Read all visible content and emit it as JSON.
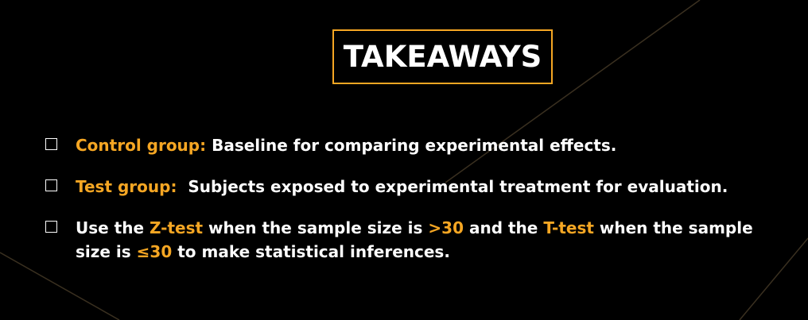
{
  "title": "TAKEAWAYS",
  "colors": {
    "background": "#000000",
    "accent": "#f5a623",
    "text": "#ffffff",
    "decor_line": "#3a3020"
  },
  "takeaways": [
    {
      "term": "Control group:",
      "text": " Baseline for comparing experimental effects."
    },
    {
      "term": "Test group:",
      "text": "  Subjects exposed to experimental treatment for evaluation."
    },
    {
      "t1": "Use the ",
      "z": "Z-test",
      "t2": " when the sample size is ",
      "gt": ">30",
      "t3": " and the ",
      "t": "T-test",
      "t4": " when the sample size is ",
      "le": "≤30",
      "t5": " to make statistical inferences."
    }
  ]
}
